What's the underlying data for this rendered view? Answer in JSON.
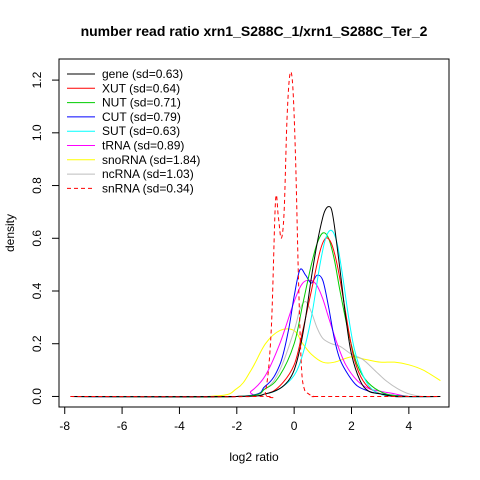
{
  "chart_data": {
    "type": "line",
    "title": "number read ratio xrn1_S288C_1/xrn1_S288C_Ter_2",
    "xlabel": "log2 ratio",
    "ylabel": "density",
    "xlim": [
      -8.2,
      5.4
    ],
    "ylim": [
      -0.04,
      1.28
    ],
    "xticks": [
      -8,
      -6,
      -4,
      -2,
      0,
      2,
      4
    ],
    "yticks": [
      0.0,
      0.2,
      0.4,
      0.6,
      0.8,
      1.0,
      1.2
    ],
    "ytick_labels": [
      "0.0",
      "0.2",
      "0.4",
      "0.6",
      "0.8",
      "1.0",
      "1.2"
    ],
    "legend_position": "top-left",
    "series": [
      {
        "name": "gene (sd=0.63)",
        "color": "#000000",
        "dash": false,
        "x": [
          -7.8,
          -2.0,
          -1.0,
          -0.5,
          -0.2,
          0.0,
          0.2,
          0.4,
          0.6,
          0.8,
          1.0,
          1.1,
          1.2,
          1.3,
          1.4,
          1.6,
          1.8,
          2.0,
          2.3,
          2.6,
          3.0,
          3.5,
          4.0,
          4.5,
          5.1
        ],
        "y": [
          0.0,
          0.0,
          0.01,
          0.03,
          0.06,
          0.1,
          0.18,
          0.3,
          0.45,
          0.58,
          0.68,
          0.71,
          0.72,
          0.71,
          0.65,
          0.48,
          0.3,
          0.16,
          0.06,
          0.02,
          0.01,
          0.0,
          0.0,
          0.0,
          0.0
        ]
      },
      {
        "name": "XUT (sd=0.64)",
        "color": "#ff0000",
        "dash": false,
        "x": [
          -7.8,
          -2.0,
          -1.0,
          -0.5,
          0.0,
          0.3,
          0.6,
          0.9,
          1.1,
          1.3,
          1.5,
          1.7,
          1.9,
          2.1,
          2.4,
          2.8,
          3.5,
          5.1
        ],
        "y": [
          0.0,
          0.0,
          0.01,
          0.04,
          0.12,
          0.25,
          0.4,
          0.55,
          0.6,
          0.58,
          0.5,
          0.38,
          0.25,
          0.14,
          0.06,
          0.02,
          0.0,
          0.0
        ]
      },
      {
        "name": "NUT (sd=0.71)",
        "color": "#00cd00",
        "dash": false,
        "x": [
          -7.8,
          -2.0,
          -1.0,
          -0.5,
          0.0,
          0.3,
          0.6,
          0.8,
          1.0,
          1.2,
          1.4,
          1.6,
          1.9,
          2.2,
          2.6,
          3.2,
          4.0,
          5.1
        ],
        "y": [
          0.0,
          0.0,
          0.03,
          0.08,
          0.2,
          0.35,
          0.5,
          0.58,
          0.62,
          0.6,
          0.52,
          0.4,
          0.24,
          0.12,
          0.05,
          0.01,
          0.0,
          0.0
        ]
      },
      {
        "name": "CUT (sd=0.79)",
        "color": "#0000ff",
        "dash": false,
        "x": [
          -7.8,
          -2.0,
          -1.0,
          -0.5,
          -0.2,
          0.0,
          0.2,
          0.4,
          0.6,
          0.8,
          1.0,
          1.2,
          1.4,
          1.6,
          1.9,
          2.2,
          2.6,
          3.0,
          4.0,
          5.1
        ],
        "y": [
          0.0,
          0.0,
          0.04,
          0.12,
          0.25,
          0.38,
          0.48,
          0.46,
          0.43,
          0.46,
          0.44,
          0.34,
          0.22,
          0.14,
          0.08,
          0.04,
          0.02,
          0.01,
          0.0,
          0.0
        ]
      },
      {
        "name": "SUT (sd=0.63)",
        "color": "#00ffff",
        "dash": false,
        "x": [
          -7.8,
          -2.0,
          -1.0,
          -0.5,
          0.0,
          0.3,
          0.6,
          0.9,
          1.1,
          1.3,
          1.5,
          1.7,
          1.9,
          2.1,
          2.4,
          2.8,
          3.5,
          5.1
        ],
        "y": [
          0.0,
          0.0,
          0.01,
          0.03,
          0.08,
          0.16,
          0.3,
          0.5,
          0.6,
          0.63,
          0.58,
          0.45,
          0.3,
          0.18,
          0.08,
          0.02,
          0.0,
          0.0
        ]
      },
      {
        "name": "tRNA (sd=0.89)",
        "color": "#ff00ff",
        "dash": false,
        "x": [
          -7.8,
          -2.0,
          -1.5,
          -1.0,
          -0.5,
          0.0,
          0.3,
          0.6,
          0.8,
          1.0,
          1.2,
          1.5,
          1.8,
          2.2,
          2.6,
          3.0,
          3.5,
          4.0,
          5.1
        ],
        "y": [
          0.0,
          0.0,
          0.02,
          0.08,
          0.2,
          0.36,
          0.43,
          0.44,
          0.42,
          0.37,
          0.3,
          0.2,
          0.12,
          0.06,
          0.03,
          0.02,
          0.01,
          0.0,
          0.0
        ]
      },
      {
        "name": "snoRNA (sd=1.84)",
        "color": "#ffff00",
        "dash": false,
        "x": [
          -7.8,
          -3.0,
          -2.0,
          -1.5,
          -1.0,
          -0.5,
          0.0,
          0.3,
          0.6,
          1.0,
          1.4,
          2.0,
          2.5,
          3.0,
          3.5,
          4.0,
          4.5,
          5.1
        ],
        "y": [
          0.0,
          0.0,
          0.03,
          0.1,
          0.2,
          0.25,
          0.25,
          0.2,
          0.16,
          0.13,
          0.13,
          0.15,
          0.14,
          0.13,
          0.13,
          0.12,
          0.1,
          0.06
        ]
      },
      {
        "name": "ncRNA (sd=1.03)",
        "color": "#bebebe",
        "dash": false,
        "x": [
          -7.8,
          -2.0,
          -1.0,
          -0.5,
          0.0,
          0.2,
          0.4,
          0.6,
          0.8,
          1.0,
          1.3,
          1.6,
          2.0,
          2.4,
          2.8,
          3.2,
          3.6,
          4.0,
          4.5,
          5.1
        ],
        "y": [
          0.0,
          0.0,
          0.03,
          0.1,
          0.25,
          0.33,
          0.36,
          0.32,
          0.26,
          0.22,
          0.2,
          0.19,
          0.16,
          0.14,
          0.1,
          0.06,
          0.03,
          0.01,
          0.0,
          0.0
        ]
      },
      {
        "name": "snRNA (sd=0.34)",
        "color": "#ff0000",
        "dash": true,
        "x": [
          -7.8,
          -1.3,
          -1.0,
          -0.8,
          -0.65,
          -0.55,
          -0.45,
          -0.35,
          -0.25,
          -0.15,
          -0.05,
          0.05,
          0.15,
          0.25,
          0.35,
          0.5,
          0.7,
          1.0,
          5.1
        ],
        "y": [
          0.0,
          0.0,
          0.02,
          0.25,
          0.74,
          0.68,
          0.6,
          0.7,
          1.05,
          1.22,
          1.18,
          0.9,
          0.45,
          0.12,
          0.03,
          0.01,
          0.0,
          0.0,
          0.0
        ]
      }
    ]
  }
}
